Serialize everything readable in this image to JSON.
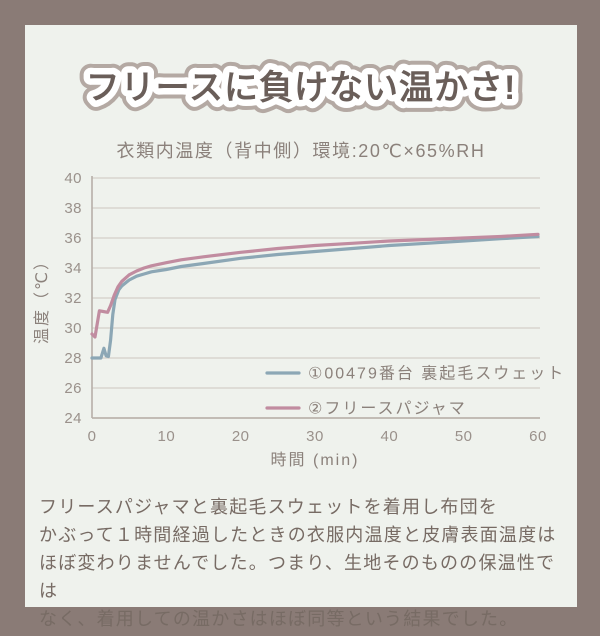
{
  "colors": {
    "page_background": "#8a7b76",
    "card_background": "#eff2ed",
    "title_text": "#6a5e59",
    "title_outline": "#b4a9a3",
    "subtitle_text": "#8b817b",
    "grid": "#d9d5ce",
    "spine": "#b6afa8",
    "tick_text": "#9a918b",
    "axis_label_text": "#8b817b",
    "legend_text": "#8b817b",
    "caption_text": "#776b64",
    "series_sweat_blue": "#8ca7b5",
    "series_fleece_pink": "#c18ca0"
  },
  "title": {
    "text": "フリースに負けない温かさ!"
  },
  "subtitle": {
    "text": "衣類内温度（背中側）環境:20℃×65%RH"
  },
  "chart_data": {
    "type": "line",
    "title": "衣類内温度（背中側）環境:20℃×65%RH",
    "xlabel": "時間 (min)",
    "ylabel": "温度（℃）",
    "xlim": [
      0,
      60
    ],
    "ylim": [
      24,
      40
    ],
    "xticks": [
      0,
      10,
      20,
      30,
      40,
      50,
      60
    ],
    "yticks": [
      24,
      26,
      28,
      30,
      32,
      34,
      36,
      38,
      40
    ],
    "grid": "horizontal",
    "legend_position": "inside-lower-right",
    "series": [
      {
        "name": "①00479番台 裏起毛スウェット",
        "color": "#8ca7b5",
        "points": [
          [
            0,
            28
          ],
          [
            1.2,
            28
          ],
          [
            1.6,
            28.65
          ],
          [
            1.9,
            28.15
          ],
          [
            2.2,
            28.1
          ],
          [
            2.5,
            29.2
          ],
          [
            2.8,
            30.9
          ],
          [
            3.1,
            31.9
          ],
          [
            3.6,
            32.55
          ],
          [
            4,
            32.8
          ],
          [
            5,
            33.2
          ],
          [
            6,
            33.45
          ],
          [
            7,
            33.6
          ],
          [
            8,
            33.75
          ],
          [
            10,
            33.9
          ],
          [
            12,
            34.1
          ],
          [
            15,
            34.3
          ],
          [
            20,
            34.65
          ],
          [
            25,
            34.9
          ],
          [
            30,
            35.1
          ],
          [
            35,
            35.3
          ],
          [
            40,
            35.5
          ],
          [
            45,
            35.65
          ],
          [
            50,
            35.8
          ],
          [
            55,
            35.95
          ],
          [
            60,
            36.1
          ]
        ]
      },
      {
        "name": "②フリースパジャマ",
        "color": "#c18ca0",
        "points": [
          [
            0,
            29.6
          ],
          [
            0.4,
            29.4
          ],
          [
            1,
            31.15
          ],
          [
            1.5,
            31.1
          ],
          [
            2.1,
            31.05
          ],
          [
            2.5,
            31.5
          ],
          [
            3,
            32.2
          ],
          [
            3.5,
            32.75
          ],
          [
            4,
            33.1
          ],
          [
            5,
            33.55
          ],
          [
            6,
            33.8
          ],
          [
            7,
            34
          ],
          [
            8,
            34.15
          ],
          [
            10,
            34.35
          ],
          [
            12,
            34.55
          ],
          [
            15,
            34.75
          ],
          [
            20,
            35.05
          ],
          [
            25,
            35.3
          ],
          [
            30,
            35.5
          ],
          [
            35,
            35.65
          ],
          [
            40,
            35.8
          ],
          [
            45,
            35.9
          ],
          [
            50,
            36
          ],
          [
            55,
            36.1
          ],
          [
            60,
            36.25
          ]
        ]
      }
    ]
  },
  "caption": {
    "lines": [
      "フリースパジャマと裏起毛スウェットを着用し布団を",
      "かぶって１時間経過したときの衣服内温度と皮膚表面温度は",
      "ほぼ変わりませんでした。つまり、生地そのものの保温性では",
      "なく、着用しての温かさはほぼ同等という結果でした。"
    ]
  }
}
